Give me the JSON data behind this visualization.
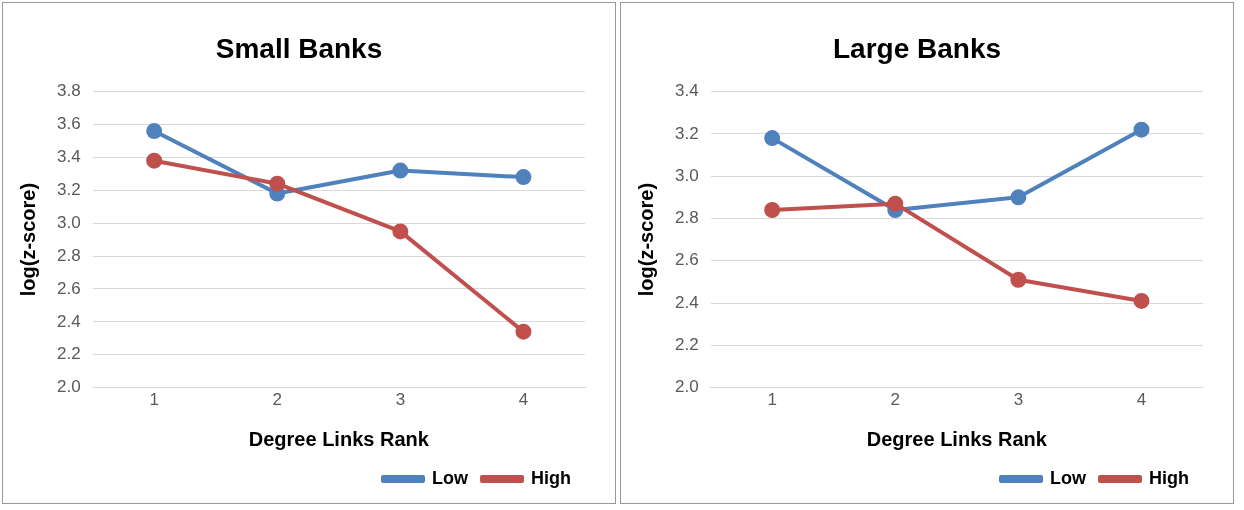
{
  "chart_data": [
    {
      "type": "line",
      "title": "Small Banks",
      "xlabel": "Degree Links Rank",
      "ylabel": "log(z-score)",
      "categories": [
        "1",
        "2",
        "3",
        "4"
      ],
      "series": [
        {
          "name": "Low",
          "color": "#4f81bd",
          "values": [
            3.56,
            3.18,
            3.32,
            3.28
          ]
        },
        {
          "name": "High",
          "color": "#c0504d",
          "values": [
            3.38,
            3.24,
            2.95,
            2.34
          ]
        }
      ],
      "ylim": [
        2.0,
        3.8
      ],
      "yticks": [
        {
          "value": 2.0,
          "label": "2.0"
        },
        {
          "value": 2.2,
          "label": "2.2"
        },
        {
          "value": 2.4,
          "label": "2.4"
        },
        {
          "value": 2.6,
          "label": "2.6"
        },
        {
          "value": 2.8,
          "label": "2.8"
        },
        {
          "value": 3.0,
          "label": "3.0"
        },
        {
          "value": 3.2,
          "label": "3.2"
        },
        {
          "value": 3.4,
          "label": "3.4"
        },
        {
          "value": 3.6,
          "label": "3.6"
        },
        {
          "value": 3.8,
          "label": "3.8"
        }
      ],
      "grid": "y",
      "legend": "bottom right",
      "marker": "circle",
      "line_style": "solid"
    },
    {
      "type": "line",
      "title": "Large Banks",
      "xlabel": "Degree Links Rank",
      "ylabel": "log(z-score)",
      "categories": [
        "1",
        "2",
        "3",
        "4"
      ],
      "series": [
        {
          "name": "Low",
          "color": "#4f81bd",
          "values": [
            3.18,
            2.84,
            2.9,
            3.22
          ]
        },
        {
          "name": "High",
          "color": "#c0504d",
          "values": [
            2.84,
            2.87,
            2.51,
            2.41
          ]
        }
      ],
      "ylim": [
        2.0,
        3.4
      ],
      "yticks": [
        {
          "value": 2.0,
          "label": "2.0"
        },
        {
          "value": 2.2,
          "label": "2.2"
        },
        {
          "value": 2.4,
          "label": "2.4"
        },
        {
          "value": 2.6,
          "label": "2.6"
        },
        {
          "value": 2.8,
          "label": "2.8"
        },
        {
          "value": 3.0,
          "label": "3.0"
        },
        {
          "value": 3.2,
          "label": "3.2"
        },
        {
          "value": 3.4,
          "label": "3.4"
        }
      ],
      "grid": "y",
      "legend": "bottom right",
      "marker": "circle",
      "line_style": "solid"
    }
  ]
}
